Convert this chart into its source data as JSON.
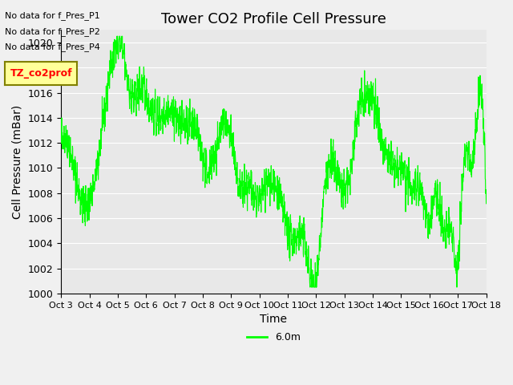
{
  "title": "Tower CO2 Profile Cell Pressure",
  "xlabel": "Time",
  "ylabel": "Cell Pressure (mBar)",
  "ylim": [
    1000,
    1021
  ],
  "yticks": [
    1000,
    1002,
    1004,
    1006,
    1008,
    1010,
    1012,
    1014,
    1016,
    1018,
    1020
  ],
  "xtick_labels": [
    "Oct 3",
    "Oct 4",
    "Oct 5",
    "Oct 6",
    "Oct 7",
    "Oct 8",
    "Oct 9",
    "Oct 10",
    "Oct 11",
    "Oct 12",
    "Oct 13",
    "Oct 14",
    "Oct 15",
    "Oct 16",
    "Oct 17",
    "Oct 18"
  ],
  "line_color": "#00FF00",
  "line_label": "6.0m",
  "bg_color": "#E8E8E8",
  "legend_texts": [
    "No data for f_Pres_P1",
    "No data for f_Pres_P2",
    "No data for f_Pres_P4",
    "TZ_co2prof"
  ],
  "legend_box_color": "#FFFF99",
  "legend_border_color": "#808000",
  "title_fontsize": 13,
  "axis_fontsize": 10,
  "tick_fontsize": 9
}
